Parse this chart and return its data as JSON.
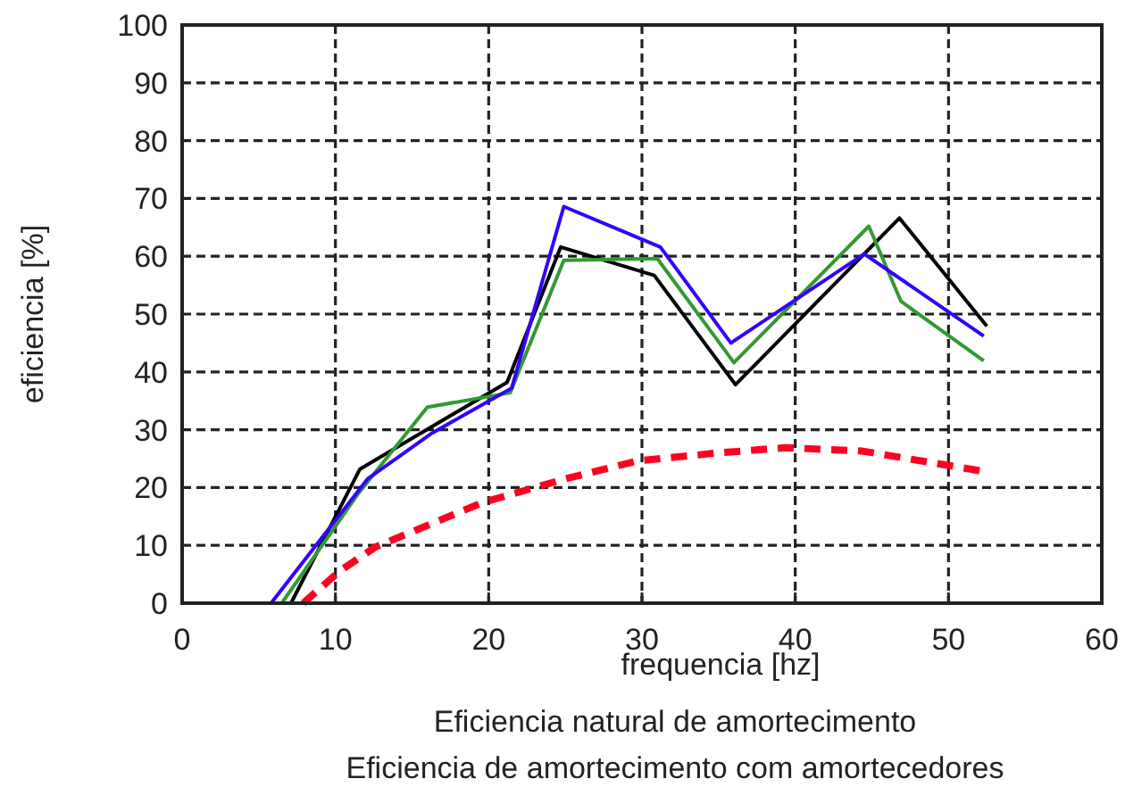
{
  "chart_data": {
    "type": "line",
    "xlabel": "frequencia [hz]",
    "ylabel": "eficiencia [%]",
    "xlim": [
      0,
      60
    ],
    "xticks": [
      0,
      10,
      20,
      30,
      40,
      50,
      60
    ],
    "ylim": [
      0,
      100
    ],
    "yticks": [
      0,
      10,
      20,
      30,
      40,
      50,
      60,
      70,
      80,
      90,
      100
    ],
    "grid": true,
    "line_style": "solid",
    "series": [
      {
        "color": "#000000",
        "x": [
          7.1,
          11.6,
          21.2,
          24.7,
          30.8,
          36.1,
          46.8,
          52.5
        ],
        "values": [
          0,
          23.2,
          38.2,
          61.6,
          56.7,
          37.8,
          66.6,
          47.9
        ]
      },
      {
        "color": "#339933",
        "x": [
          6.5,
          11.5,
          16.0,
          21.4,
          24.9,
          31.0,
          36.0,
          44.8,
          46.9,
          52.3
        ],
        "values": [
          0,
          19,
          33.9,
          36.4,
          59.3,
          59.6,
          41.6,
          65.2,
          52.2,
          41.9
        ]
      },
      {
        "color": "#3300ff",
        "x": [
          5.8,
          12.1,
          16.3,
          21.5,
          24.9,
          31.2,
          35.8,
          44.5,
          52.3
        ],
        "values": [
          0,
          21.5,
          29.4,
          37.2,
          68.6,
          61.6,
          45.0,
          60.4,
          46.2
        ]
      },
      {
        "color": "#ff0022",
        "line_style": "dashed",
        "x": [
          7.9,
          10.3,
          12.6,
          19.6,
          25,
          29.7,
          35,
          39.4,
          44.4,
          52.3
        ],
        "values": [
          0,
          5.6,
          9.7,
          17.4,
          21.5,
          24.6,
          26,
          26.9,
          26.3,
          22.8
        ]
      }
    ],
    "annotations": [
      "Eficiencia natural de amortecimento",
      "Eficiencia de amortecimento com amortecedores"
    ]
  }
}
